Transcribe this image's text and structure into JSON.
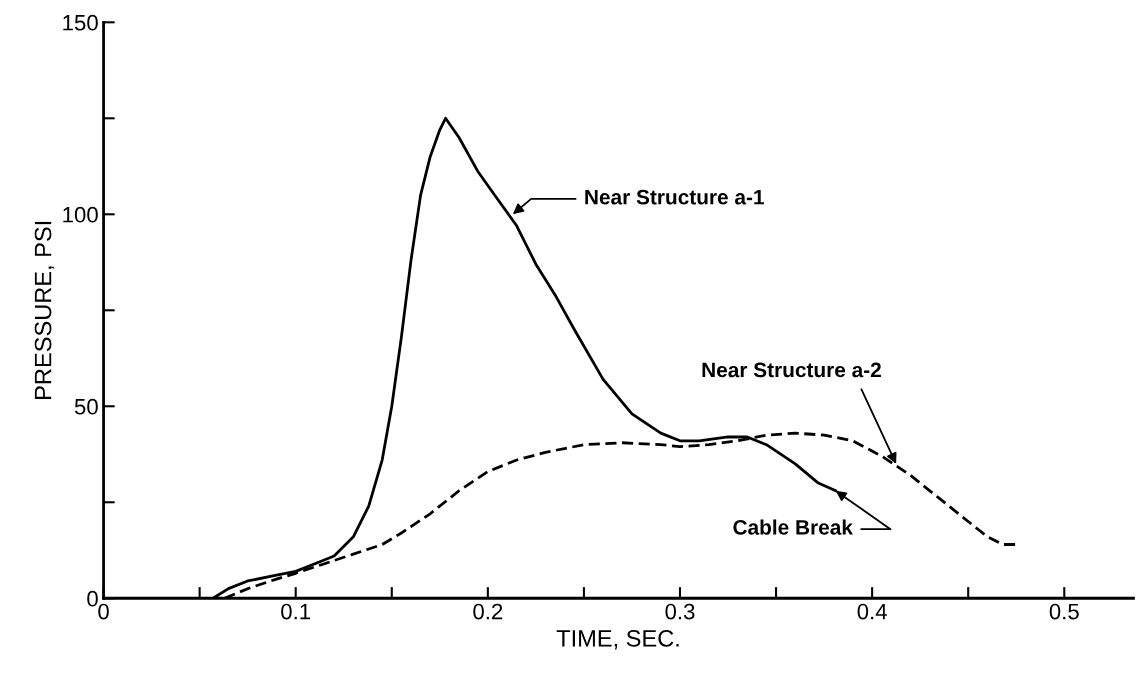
{
  "chart_data": {
    "type": "line",
    "xlabel": "TIME, SEC.",
    "ylabel": "PRESSURE, PSI",
    "xlim": [
      0,
      0.536
    ],
    "ylim": [
      0,
      150
    ],
    "xticks": [
      0,
      {
        "value": 0.05,
        "label": null
      },
      0.1,
      {
        "value": 0.15,
        "label": null
      },
      0.2,
      {
        "value": 0.25,
        "label": null
      },
      0.3,
      {
        "value": 0.35,
        "label": null
      },
      0.4,
      {
        "value": 0.45,
        "label": null
      },
      0.5
    ],
    "yticks": [
      0,
      {
        "value": 25,
        "label": null
      },
      50,
      {
        "value": 75,
        "label": null
      },
      100,
      {
        "value": 125,
        "label": null
      },
      150
    ],
    "grid": false,
    "legend": false,
    "marker": "none",
    "series": [
      {
        "color": "#000000",
        "line_style": "solid",
        "x": [
          0.057,
          0.065,
          0.075,
          0.09,
          0.1,
          0.11,
          0.12,
          0.13,
          0.138,
          0.145,
          0.15,
          0.155,
          0.16,
          0.165,
          0.17,
          0.175,
          0.178,
          0.185,
          0.195,
          0.205,
          0.215,
          0.225,
          0.235,
          0.245,
          0.26,
          0.275,
          0.29,
          0.3,
          0.31,
          0.325,
          0.335,
          0.345,
          0.36,
          0.372,
          0.381
        ],
        "values": [
          0,
          2.5,
          4.5,
          6,
          7,
          9,
          11,
          16,
          24,
          36,
          50,
          68,
          88,
          105,
          115,
          122,
          125,
          120,
          111,
          104,
          97,
          87,
          79,
          70,
          57,
          48,
          43,
          41,
          41,
          42,
          42,
          40,
          35,
          30,
          28
        ]
      },
      {
        "color": "#000000",
        "line_style": "dashed",
        "x": [
          0.063,
          0.075,
          0.09,
          0.1,
          0.115,
          0.13,
          0.145,
          0.155,
          0.17,
          0.185,
          0.2,
          0.215,
          0.23,
          0.25,
          0.27,
          0.29,
          0.3,
          0.315,
          0.33,
          0.345,
          0.36,
          0.375,
          0.39,
          0.405,
          0.42,
          0.435,
          0.45,
          0.46,
          0.468,
          0.476
        ],
        "values": [
          0,
          2.5,
          5,
          6.5,
          9,
          11.5,
          14,
          17,
          22,
          28,
          33,
          36,
          38,
          40,
          40.5,
          40,
          39.5,
          40,
          41,
          42.5,
          43,
          42.5,
          41,
          37,
          32,
          26,
          20,
          16,
          14,
          14
        ]
      }
    ],
    "annotations": [
      {
        "text": "Near Structure a-1",
        "x": 0.213,
        "y": 100
      },
      {
        "text": "Near Structure a-2",
        "x": 0.4125,
        "y": 35
      },
      {
        "text": "Cable Break",
        "x": 0.381,
        "y": 28
      }
    ]
  }
}
